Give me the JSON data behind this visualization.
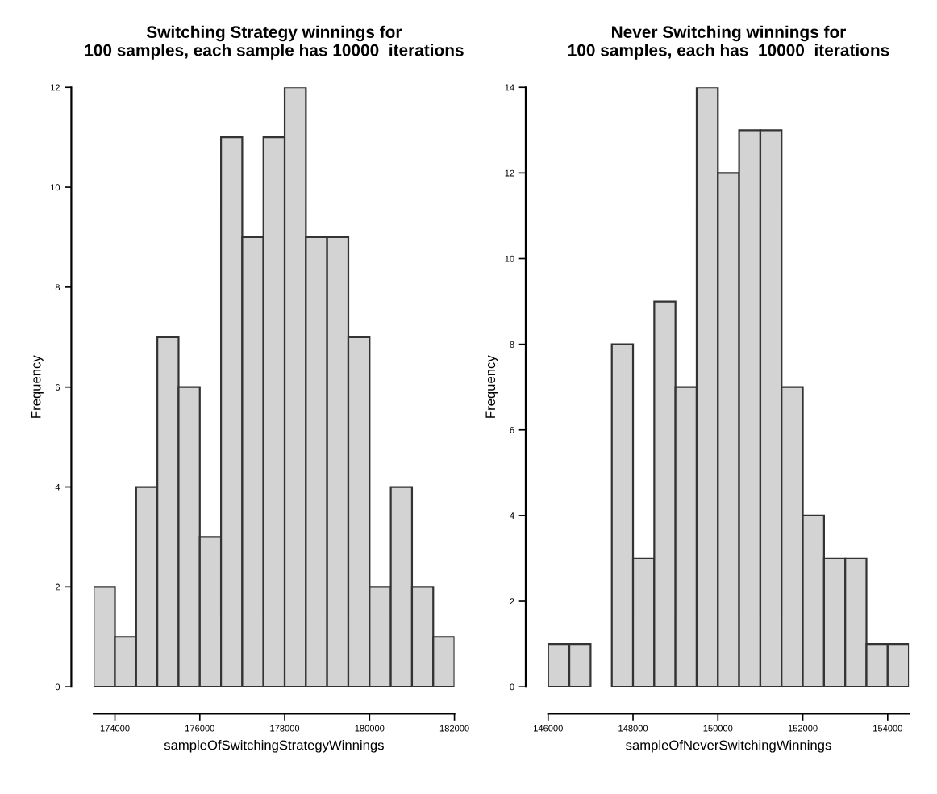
{
  "chart_data": [
    {
      "type": "histogram",
      "title": "Switching Strategy winnings for\n100 samples, each sample has 10000  iterations",
      "xlabel": "sampleOfSwitchingStrategyWinnings",
      "ylabel": "Frequency",
      "bins": [
        173500,
        174000,
        174500,
        175000,
        175500,
        176000,
        176500,
        177000,
        177500,
        178000,
        178500,
        179000,
        179500,
        180000,
        180500,
        181000,
        181500,
        182000
      ],
      "values": [
        2,
        1,
        4,
        7,
        6,
        3,
        11,
        9,
        11,
        12,
        9,
        9,
        7,
        2,
        4,
        2,
        1
      ],
      "color": "#d3d3d3",
      "xlim": [
        173500,
        182000
      ],
      "xticks": [
        174000,
        176000,
        178000,
        180000,
        182000
      ],
      "ylim": [
        0,
        12
      ],
      "yticks": [
        0,
        2,
        4,
        6,
        8,
        10,
        12
      ],
      "grid": false
    },
    {
      "type": "histogram",
      "title": "Never Switching winnings for\n100 samples, each has  10000  iterations",
      "xlabel": "sampleOfNeverSwitchingWinnings",
      "ylabel": "Frequency",
      "bins": [
        146000,
        146500,
        147000,
        147500,
        148000,
        148500,
        149000,
        149500,
        150000,
        150500,
        151000,
        151500,
        152000,
        152500,
        153000,
        153500,
        154000,
        154500
      ],
      "values": [
        1,
        1,
        0,
        8,
        3,
        9,
        7,
        14,
        12,
        13,
        13,
        7,
        4,
        3,
        3,
        1,
        1
      ],
      "color": "#d3d3d3",
      "xlim": [
        146000,
        154500
      ],
      "xticks": [
        146000,
        148000,
        150000,
        152000,
        154000
      ],
      "ylim": [
        0,
        14
      ],
      "yticks": [
        0,
        2,
        4,
        6,
        8,
        10,
        12,
        14
      ],
      "grid": false
    }
  ]
}
